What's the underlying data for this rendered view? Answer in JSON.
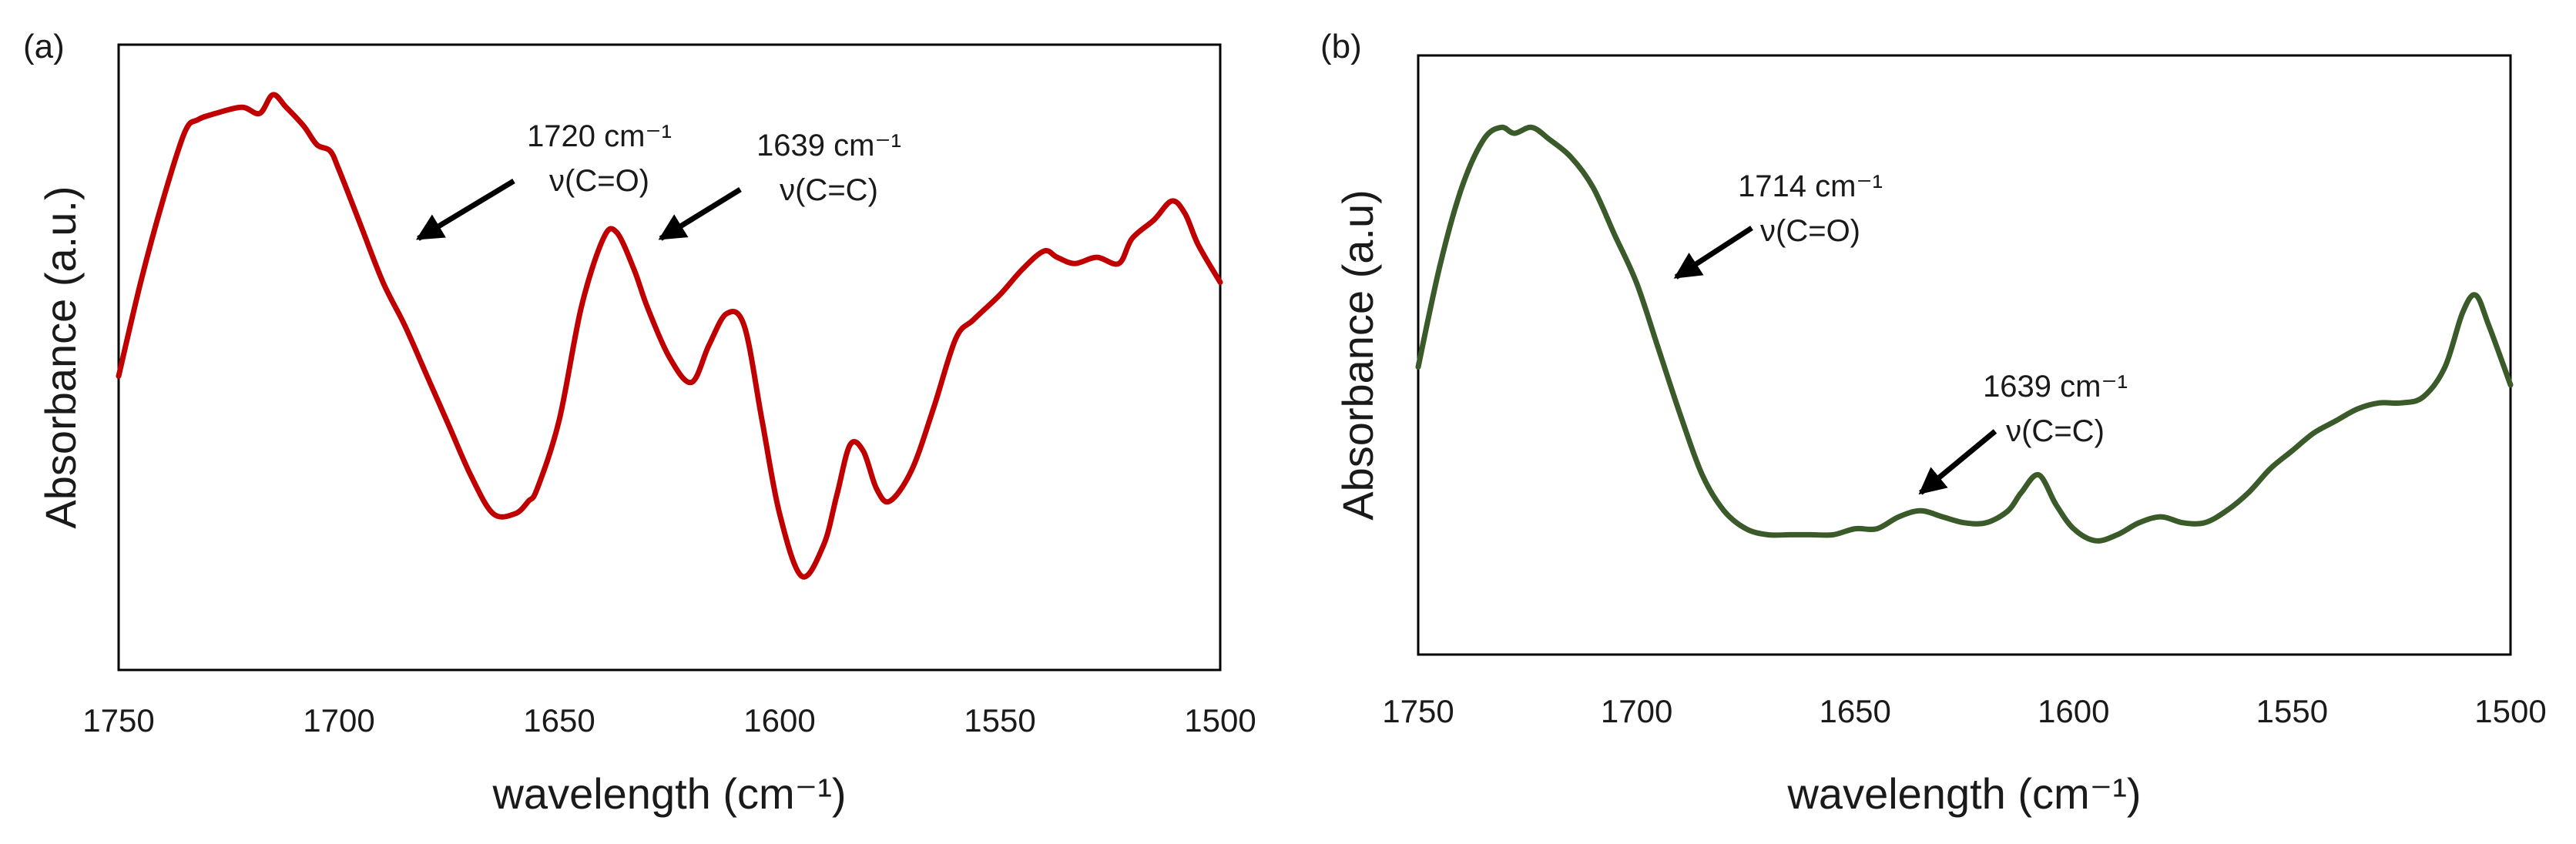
{
  "figure": {
    "panels": [
      {
        "panel_label": "(a)"
      },
      {
        "panel_label": "(b)"
      }
    ]
  },
  "chart_data": [
    {
      "type": "line",
      "panel": "(a)",
      "xlabel": "wavelength (cm⁻¹)",
      "ylabel": "Absorbance (a.u.)",
      "xlim": [
        1750,
        1500
      ],
      "x_reversed": true,
      "x_ticks": [
        1750,
        1700,
        1650,
        1600,
        1550,
        1500
      ],
      "x_tick_labels": [
        "1750",
        "1700",
        "1650",
        "1600",
        "1550",
        "1500"
      ],
      "ylim": [
        0,
        1
      ],
      "y_ticks_shown": false,
      "grid": false,
      "legend": "none",
      "line_color": "#c00000",
      "series": [
        {
          "x": [
            1750,
            1745,
            1740,
            1735,
            1732,
            1728,
            1722,
            1718,
            1715,
            1712,
            1708,
            1705,
            1702,
            1700,
            1695,
            1690,
            1685,
            1680,
            1675,
            1670,
            1665,
            1660,
            1657,
            1655,
            1650,
            1645,
            1640,
            1637,
            1633,
            1630,
            1625,
            1620,
            1616,
            1612,
            1608,
            1604,
            1600,
            1595,
            1590,
            1587,
            1584,
            1581,
            1578,
            1575,
            1570,
            1565,
            1560,
            1556,
            1550,
            1545,
            1540,
            1537,
            1533,
            1528,
            1523,
            1520,
            1515,
            1511,
            1508,
            1505,
            1500
          ],
          "y": [
            0.47,
            0.62,
            0.75,
            0.86,
            0.88,
            0.89,
            0.9,
            0.89,
            0.92,
            0.9,
            0.87,
            0.84,
            0.83,
            0.8,
            0.71,
            0.62,
            0.55,
            0.47,
            0.39,
            0.31,
            0.25,
            0.25,
            0.27,
            0.29,
            0.4,
            0.58,
            0.69,
            0.7,
            0.64,
            0.58,
            0.5,
            0.46,
            0.52,
            0.57,
            0.55,
            0.4,
            0.25,
            0.15,
            0.2,
            0.28,
            0.36,
            0.35,
            0.29,
            0.27,
            0.32,
            0.42,
            0.53,
            0.56,
            0.6,
            0.64,
            0.67,
            0.66,
            0.65,
            0.66,
            0.65,
            0.69,
            0.72,
            0.75,
            0.73,
            0.68,
            0.62
          ]
        }
      ],
      "annotations": [
        {
          "label": "1720 cm⁻¹",
          "sublabel": "ν(C=O)",
          "points_to_x": 1682,
          "points_to_y": 0.69
        },
        {
          "label": "1639 cm⁻¹",
          "sublabel": "ν(C=C)",
          "points_to_x": 1627,
          "points_to_y": 0.69
        }
      ]
    },
    {
      "type": "line",
      "panel": "(b)",
      "xlabel": "wavelength (cm⁻¹)",
      "ylabel": "Absorbance (a.u)",
      "xlim": [
        1750,
        1500
      ],
      "x_reversed": true,
      "x_ticks": [
        1750,
        1700,
        1650,
        1600,
        1550,
        1500
      ],
      "x_tick_labels": [
        "1750",
        "1700",
        "1650",
        "1600",
        "1550",
        "1500"
      ],
      "ylim": [
        0,
        1
      ],
      "y_ticks_shown": false,
      "grid": false,
      "legend": "none",
      "line_color": "#3a5a2a",
      "series": [
        {
          "x": [
            1750,
            1745,
            1740,
            1735,
            1731,
            1728,
            1724,
            1720,
            1715,
            1710,
            1705,
            1700,
            1695,
            1690,
            1685,
            1680,
            1675,
            1670,
            1665,
            1660,
            1655,
            1650,
            1645,
            1640,
            1635,
            1630,
            1625,
            1620,
            1615,
            1612,
            1608,
            1604,
            1600,
            1595,
            1590,
            1585,
            1580,
            1575,
            1570,
            1565,
            1560,
            1555,
            1550,
            1545,
            1540,
            1535,
            1530,
            1525,
            1520,
            1515,
            1511,
            1508,
            1505,
            1500
          ],
          "y": [
            0.48,
            0.65,
            0.78,
            0.86,
            0.88,
            0.87,
            0.88,
            0.86,
            0.83,
            0.78,
            0.7,
            0.62,
            0.51,
            0.4,
            0.3,
            0.24,
            0.21,
            0.2,
            0.2,
            0.2,
            0.2,
            0.21,
            0.21,
            0.23,
            0.24,
            0.23,
            0.22,
            0.22,
            0.24,
            0.27,
            0.3,
            0.25,
            0.21,
            0.19,
            0.2,
            0.22,
            0.23,
            0.22,
            0.22,
            0.24,
            0.27,
            0.31,
            0.34,
            0.37,
            0.39,
            0.41,
            0.42,
            0.42,
            0.43,
            0.48,
            0.57,
            0.6,
            0.55,
            0.45
          ]
        }
      ],
      "annotations": [
        {
          "label": "1714 cm⁻¹",
          "sublabel": "ν(C=O)",
          "points_to_x": 1691,
          "points_to_y": 0.63
        },
        {
          "label": "1639 cm⁻¹",
          "sublabel": "ν(C=C)",
          "points_to_x": 1635,
          "points_to_y": 0.27
        }
      ]
    }
  ]
}
